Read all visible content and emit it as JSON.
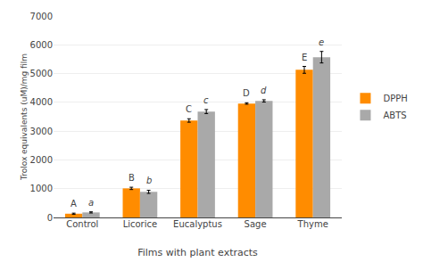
{
  "chart_data": {
    "type": "bar",
    "xlabel": "Films with plant extracts",
    "ylabel": "Trolox equivalents (uM)/mg film",
    "categories": [
      "Control",
      "Licorice",
      "Eucalyptus",
      "Sage",
      "Thyme"
    ],
    "series": [
      {
        "name": "DPPH",
        "color": "#FF8C00",
        "values": [
          130,
          1010,
          3370,
          3960,
          5130
        ],
        "errors": [
          20,
          40,
          60,
          25,
          120
        ],
        "letters": [
          "A",
          "B",
          "C",
          "D",
          "E"
        ]
      },
      {
        "name": "ABTS",
        "color": "#A9A9A9",
        "values": [
          175,
          890,
          3680,
          4050,
          5570
        ],
        "errors": [
          20,
          55,
          70,
          40,
          200
        ],
        "letters": [
          "a",
          "b",
          "c",
          "d",
          "e"
        ]
      }
    ],
    "ylim": [
      0,
      7000
    ],
    "yticks": [
      0,
      1000,
      2000,
      3000,
      4000,
      5000,
      6000,
      7000
    ],
    "grid": true,
    "legend": "right"
  }
}
